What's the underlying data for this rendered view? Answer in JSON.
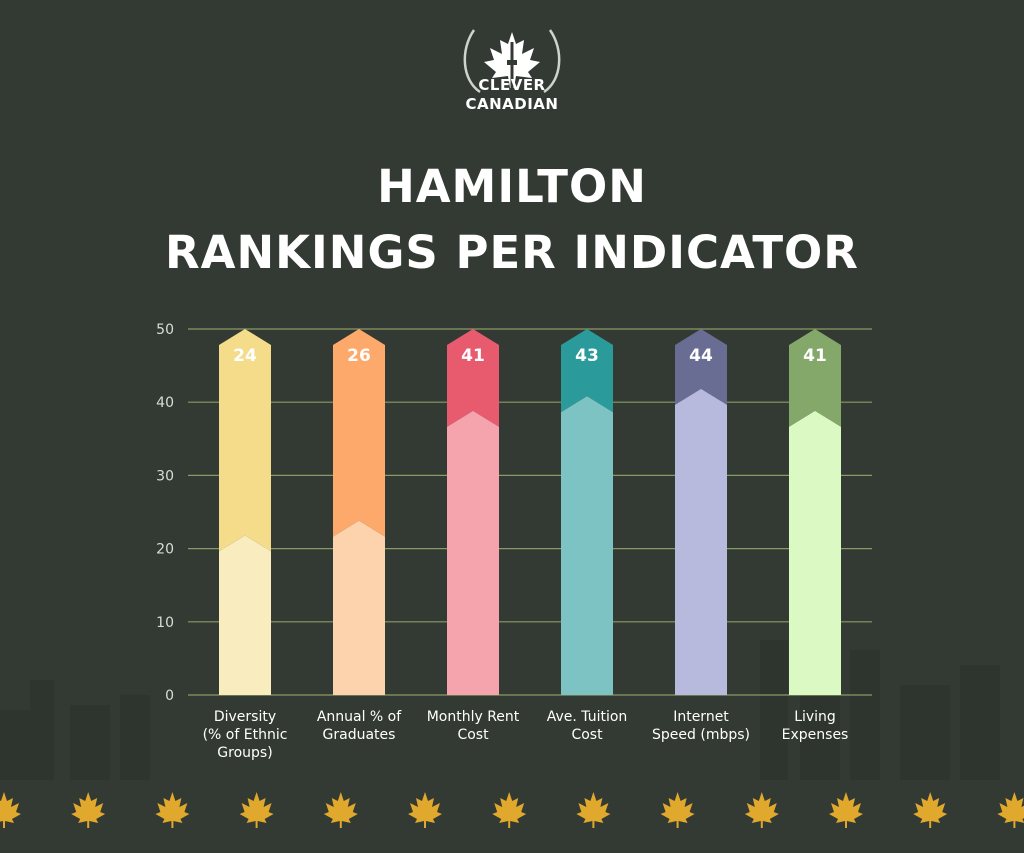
{
  "logo": {
    "line1": "CLEVER",
    "line2": "CANADIAN"
  },
  "title": {
    "line1": "HAMILTON",
    "line2": "RANKINGS PER INDICATOR"
  },
  "colors": {
    "background": "#333a33",
    "grid": "#8a9a66",
    "leaf": "#e0a82c"
  },
  "chart_data": {
    "type": "bar",
    "title": "HAMILTON RANKINGS PER INDICATOR",
    "xlabel": "",
    "ylabel": "",
    "ylim": [
      0,
      50
    ],
    "yticks": [
      0,
      10,
      20,
      30,
      40,
      50
    ],
    "grid": true,
    "categories": [
      [
        "Diversity",
        "(% of Ethnic",
        "Groups)"
      ],
      [
        "Annual % of",
        "Graduates"
      ],
      [
        "Monthly Rent",
        "Cost"
      ],
      [
        "Ave. Tuition",
        "Cost"
      ],
      [
        "Internet",
        "Speed (mbps)"
      ],
      [
        "Living",
        "Expenses"
      ]
    ],
    "values": [
      24,
      26,
      41,
      43,
      44,
      41
    ],
    "bar_colors": [
      {
        "light": "#f9edc0",
        "dark": "#f4dc8a"
      },
      {
        "light": "#fdd3ad",
        "dark": "#fda96c"
      },
      {
        "light": "#f5a3ac",
        "dark": "#e85a6d"
      },
      {
        "light": "#7ec3c4",
        "dark": "#2a9b9a"
      },
      {
        "light": "#b7b9dd",
        "dark": "#6a6d93"
      },
      {
        "light": "#dbf9c2",
        "dark": "#84a86a"
      }
    ]
  }
}
